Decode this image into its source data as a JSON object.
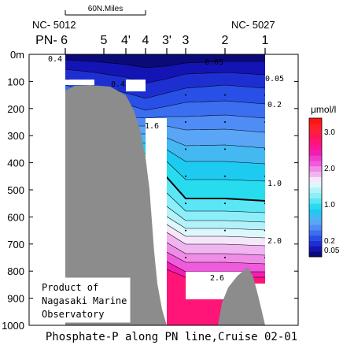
{
  "chart_data": {
    "type": "section contour",
    "title": "Phosphate-P along PN line,Cruise 02-01",
    "y_axis": {
      "ticks": [
        {
          "label": "0m",
          "value": 0
        },
        {
          "label": "100",
          "value": 100
        },
        {
          "label": "200",
          "value": 200
        },
        {
          "label": "300",
          "value": 300
        },
        {
          "label": "400",
          "value": 400
        },
        {
          "label": "500",
          "value": 500
        },
        {
          "label": "600",
          "value": 600
        },
        {
          "label": "700",
          "value": 700
        },
        {
          "label": "800",
          "value": 800
        },
        {
          "label": "900",
          "value": 900
        },
        {
          "label": "1000",
          "value": 1000
        }
      ],
      "ylim": [
        0,
        1000
      ],
      "reversed": true
    },
    "stations": [
      "PN- 6",
      "5",
      "4'",
      "4",
      "3'",
      "3",
      "2",
      "1"
    ],
    "station_codes": {
      "left": "NC- 5012",
      "right": "NC- 5027"
    },
    "scale_bar": "60N.Miles",
    "contour_labels": [
      "0.4",
      "0.05",
      "0.05",
      "0.4",
      "0.2",
      "1.6",
      "1.0",
      "2.0",
      "2.6"
    ],
    "colorbar": {
      "unit": "μmol/l",
      "tick_labels": [
        "3.0",
        "2.0",
        "1.0",
        "0.2",
        "0.05"
      ],
      "levels": [
        0.05,
        0.1,
        0.2,
        0.3,
        0.4,
        0.5,
        0.6,
        0.7,
        0.8,
        0.9,
        1.0,
        1.1,
        1.2,
        1.3,
        1.4,
        1.5,
        1.6,
        1.7,
        1.8,
        1.9,
        2.0,
        2.2,
        2.4,
        2.6,
        2.8,
        3.0,
        3.2
      ],
      "colors": [
        "#0a0a78",
        "#1414b4",
        "#1e2fd2",
        "#2850e6",
        "#3c6ef0",
        "#4f8cf5",
        "#5aa5f5",
        "#44b8f0",
        "#1ecbf0",
        "#28dcf0",
        "#5ae6f5",
        "#8ceef8",
        "#b4f2fa",
        "#dcf8fc",
        "#f5e6fa",
        "#f0b4f0",
        "#f08ce6",
        "#f05adc",
        "#f03cc8",
        "#f01eb4",
        "#ff1496",
        "#ff1478",
        "#ff145a",
        "#ff1e3c",
        "#ff1e28",
        "#ff1414"
      ]
    }
  },
  "credit": [
    "Product of",
    "Nagasaki Marine",
    "Observatory"
  ]
}
